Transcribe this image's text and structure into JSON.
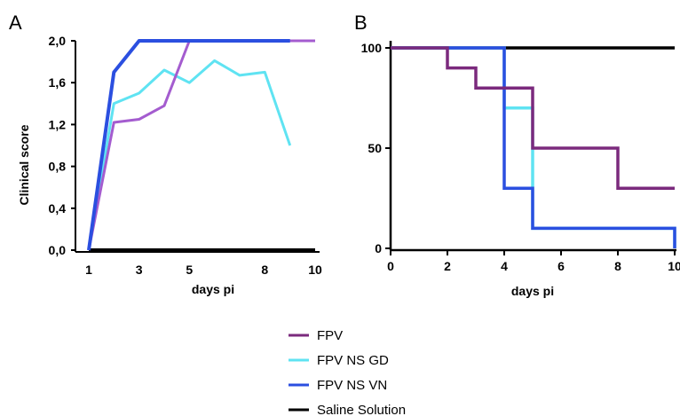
{
  "legend": [
    {
      "label": "FPV",
      "color": "#7b2a7d"
    },
    {
      "label": "FPV NS GD",
      "color": "#5fe3f2"
    },
    {
      "label": "FPV NS VN",
      "color": "#2b4fe0"
    },
    {
      "label": "Saline Solution",
      "color": "#000000"
    }
  ],
  "chart_data": [
    {
      "type": "line",
      "panel": "A",
      "title": "",
      "xlabel": "days pi",
      "ylabel": "Clinical score",
      "x_ticks": [
        "1",
        "3",
        "5",
        "8",
        "10"
      ],
      "y_ticks": [
        "0,0",
        "0,4",
        "0,8",
        "1,2",
        "1,6",
        "2,0"
      ],
      "ylim": [
        0,
        2
      ],
      "x": [
        1,
        2,
        3,
        4,
        5,
        6,
        7,
        8,
        9,
        10
      ],
      "series": [
        {
          "name": "FPV",
          "color": "#a45ccf",
          "values": [
            0,
            1.22,
            1.25,
            1.38,
            2.0,
            2.0,
            2.0,
            2.0,
            2.0,
            2.0
          ]
        },
        {
          "name": "FPV NS GD",
          "color": "#5fe3f2",
          "values": [
            0,
            1.4,
            1.5,
            1.72,
            1.6,
            1.81,
            1.67,
            1.7,
            1.0,
            null
          ]
        },
        {
          "name": "FPV NS VN",
          "color": "#2b4fe0",
          "values": [
            0,
            1.7,
            2.0,
            2.0,
            2.0,
            2.0,
            2.0,
            2.0,
            2.0,
            null
          ]
        },
        {
          "name": "Saline Solution",
          "color": "#000000",
          "values": [
            0,
            0,
            0,
            0,
            0,
            0,
            0,
            0,
            0,
            0
          ]
        }
      ],
      "grid": false
    },
    {
      "type": "line",
      "step": true,
      "panel": "B",
      "title": "",
      "xlabel": "days pi",
      "ylabel": "",
      "x_ticks": [
        "0",
        "2",
        "4",
        "6",
        "8",
        "10"
      ],
      "y_ticks": [
        "0",
        "50",
        "100"
      ],
      "xlim": [
        0,
        10
      ],
      "ylim": [
        0,
        100
      ],
      "series": [
        {
          "name": "FPV",
          "color": "#7b2a7d",
          "points": [
            [
              0,
              100
            ],
            [
              2,
              100
            ],
            [
              2,
              90
            ],
            [
              3,
              90
            ],
            [
              3,
              80
            ],
            [
              5,
              80
            ],
            [
              5,
              50
            ],
            [
              8,
              50
            ],
            [
              8,
              30
            ],
            [
              10,
              30
            ]
          ]
        },
        {
          "name": "FPV NS GD",
          "color": "#5fe3f2",
          "points": [
            [
              0,
              100
            ],
            [
              4,
              100
            ],
            [
              4,
              70
            ],
            [
              5,
              70
            ],
            [
              5,
              10
            ],
            [
              10,
              10
            ],
            [
              10,
              0
            ]
          ]
        },
        {
          "name": "FPV NS VN",
          "color": "#2b4fe0",
          "points": [
            [
              0,
              100
            ],
            [
              4,
              100
            ],
            [
              4,
              30
            ],
            [
              5,
              30
            ],
            [
              5,
              10
            ],
            [
              10,
              10
            ],
            [
              10,
              0
            ]
          ]
        },
        {
          "name": "Saline Solution",
          "color": "#000000",
          "points": [
            [
              0,
              100
            ],
            [
              10,
              100
            ]
          ]
        }
      ],
      "grid": false
    }
  ]
}
